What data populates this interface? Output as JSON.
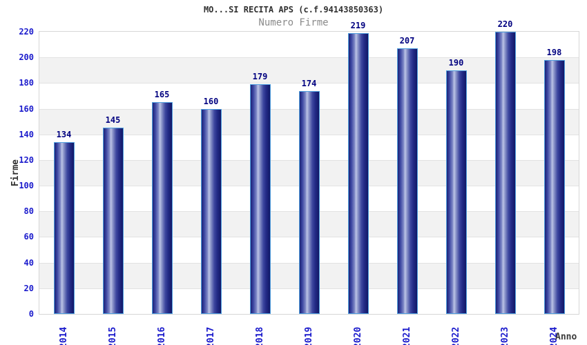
{
  "header": {
    "title": "MO...SI RECITA APS (c.f.94143850363)",
    "subtitle": "Numero Firme"
  },
  "chart_data": {
    "type": "bar",
    "title": "MO...SI RECITA APS (c.f.94143850363)",
    "subtitle": "Numero Firme",
    "xlabel": "Anno",
    "ylabel": "Firme",
    "categories": [
      "2014",
      "2015",
      "2016",
      "2017",
      "2018",
      "2019",
      "2020",
      "2021",
      "2022",
      "2023",
      "2024"
    ],
    "values": [
      134,
      145,
      165,
      160,
      179,
      174,
      219,
      207,
      190,
      220,
      198
    ],
    "ylim": [
      0,
      220
    ],
    "ytick_step": 20,
    "yticks": [
      0,
      20,
      40,
      60,
      80,
      100,
      120,
      140,
      160,
      180,
      200,
      220
    ],
    "grid": true,
    "legend": "none",
    "band_colors": [
      "#ffffff",
      "#f2f2f2"
    ],
    "colors": {
      "bar_dark": "#1c2376",
      "bar_mid": "#3a44a0",
      "bar_light": "#bcc4e6",
      "bar_border": "#4f9fdf",
      "tick_label": "#1a1acc",
      "value_label": "#000080",
      "title": "#303030",
      "subtitle": "#8a8a8a",
      "axis_title": "#303030",
      "grid_line": "#e2e2e2",
      "plot_border": "#d6d6d6"
    }
  }
}
